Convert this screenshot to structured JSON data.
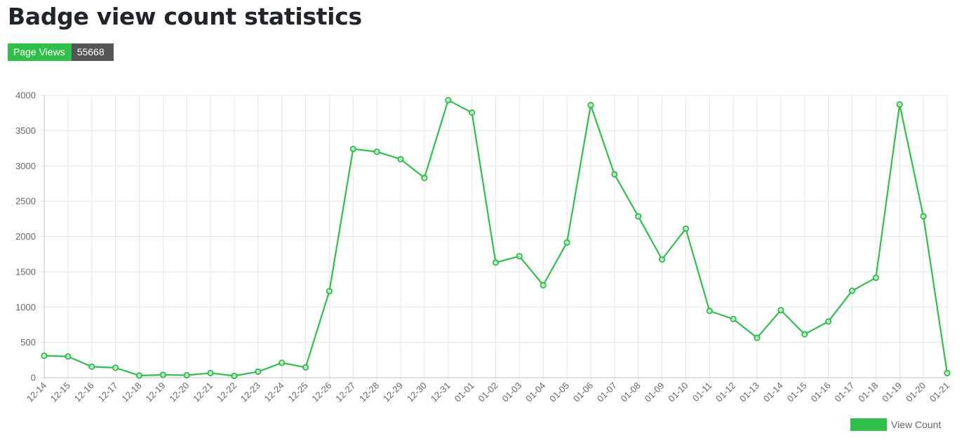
{
  "page": {
    "title": "Badge view count statistics"
  },
  "badge": {
    "label": "Page Views",
    "value": "55668"
  },
  "colors": {
    "line": "#2fbf4b",
    "grid": "#e5e5e5",
    "axis": "#bfbfbf",
    "badge_label_bg": "#2fbf4b",
    "badge_value_bg": "#555555"
  },
  "chart_data": {
    "type": "line",
    "title": "",
    "xlabel": "",
    "ylabel": "",
    "ylim": [
      0,
      4000
    ],
    "yticks": [
      0,
      500,
      1000,
      1500,
      2000,
      2500,
      3000,
      3500,
      4000
    ],
    "grid": true,
    "legend_position": "bottom-right",
    "categories": [
      "12-14",
      "12-15",
      "12-16",
      "12-17",
      "12-18",
      "12-19",
      "12-20",
      "12-21",
      "12-22",
      "12-23",
      "12-24",
      "12-25",
      "12-26",
      "12-27",
      "12-28",
      "12-29",
      "12-30",
      "12-31",
      "01-01",
      "01-02",
      "01-03",
      "01-04",
      "01-05",
      "01-06",
      "01-07",
      "01-08",
      "01-09",
      "01-10",
      "01-11",
      "01-12",
      "01-13",
      "01-14",
      "01-15",
      "01-16",
      "01-17",
      "01-18",
      "01-19",
      "01-20",
      "01-21"
    ],
    "series": [
      {
        "name": "View Count",
        "values": [
          310,
          300,
          155,
          140,
          30,
          40,
          35,
          65,
          25,
          85,
          210,
          145,
          1225,
          3240,
          3200,
          3095,
          2830,
          3930,
          3755,
          1630,
          1720,
          1310,
          1915,
          3860,
          2880,
          2285,
          1675,
          2110,
          945,
          830,
          565,
          955,
          615,
          795,
          1230,
          1415,
          3870,
          2285,
          65
        ]
      }
    ]
  }
}
